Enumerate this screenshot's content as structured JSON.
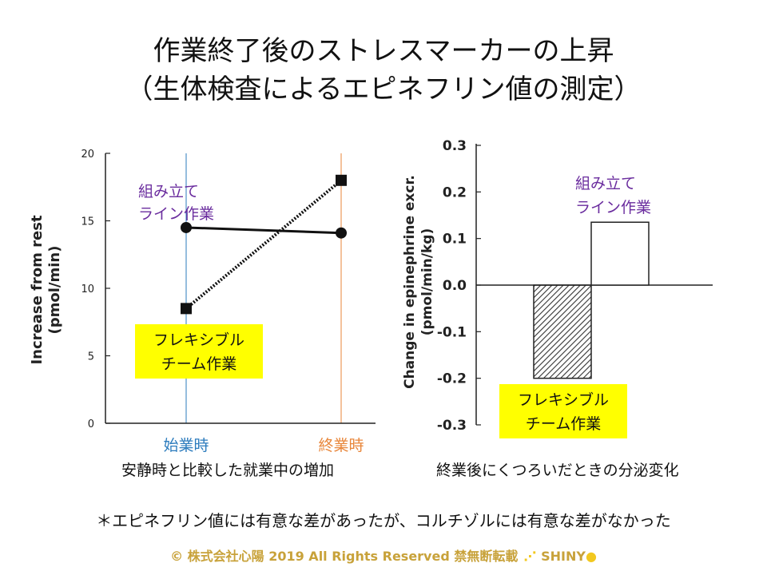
{
  "title": {
    "line1": "作業終了後のストレスマーカーの上昇",
    "line2": "（生体検査によるエピネフリン値の測定）"
  },
  "chart_data": [
    {
      "type": "line",
      "ylabel_line1": "Increase from rest",
      "ylabel_line2": "(pmol/min)",
      "ylim": [
        0,
        20
      ],
      "yticks": [
        0,
        5,
        10,
        15,
        20
      ],
      "x": [
        "始業時",
        "終業時"
      ],
      "x_colors": [
        "#2b7bbd",
        "#e8863a"
      ],
      "series": [
        {
          "name": "組み立て\nライン作業",
          "label_lines": [
            "組み立て",
            "ライン作業"
          ],
          "values": [
            14.5,
            14.1
          ],
          "marker": "circle",
          "style": "solid",
          "label_color": "#6a2c9e"
        },
        {
          "name": "フレキシブル\nチーム作業",
          "label_lines": [
            "フレキシブル",
            "チーム作業"
          ],
          "values": [
            8.5,
            18.0
          ],
          "marker": "square",
          "style": "dotted",
          "label_bg": "#ffff00"
        }
      ],
      "caption": "安静時と比較した就業中の増加"
    },
    {
      "type": "bar",
      "ylabel_line1": "Change in epinephrine excr.",
      "ylabel_line2": "(pmol/min/kg)",
      "ylim": [
        -0.3,
        0.3
      ],
      "yticks": [
        0.3,
        0.2,
        0.1,
        0.0,
        -0.1,
        -0.2,
        -0.3
      ],
      "ytick_labels": [
        "0.3",
        "0.2",
        "0.1",
        "0.0",
        "-0.1",
        "-0.2",
        "-0.3"
      ],
      "bars": [
        {
          "name": "フレキシブル\nチーム作業",
          "label_lines": [
            "フレキシブル",
            "チーム作業"
          ],
          "value": -0.2,
          "fill": "hatched",
          "label_bg": "#ffff00"
        },
        {
          "name": "組み立て\nライン作業",
          "label_lines": [
            "組み立て",
            "ライン作業"
          ],
          "value": 0.135,
          "fill": "open",
          "label_color": "#6a2c9e"
        }
      ],
      "caption": "終業後にくつろいだときの分泌変化"
    }
  ],
  "note": "＊エピネフリン値には有意な差があったが、コルチゾルには有意な差がなかった",
  "footer": {
    "text": "© 株式会社心陽 2019 All Rights Reserved 禁無断転載",
    "brand": "SHINY"
  }
}
